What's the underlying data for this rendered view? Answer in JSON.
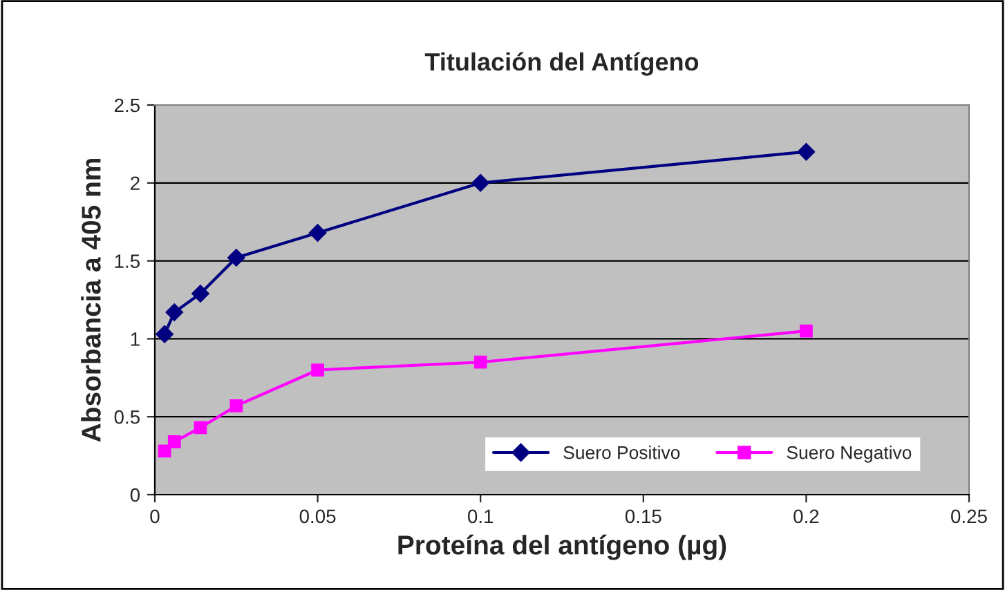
{
  "chart_data": {
    "type": "line",
    "title": "Titulación del Antígeno",
    "xlabel": "Proteína del antígeno (µg)",
    "ylabel": "Absorbancia a 405 nm",
    "x": [
      0.003,
      0.006,
      0.014,
      0.025,
      0.05,
      0.1,
      0.2
    ],
    "series": [
      {
        "name": "Suero Positivo",
        "color": "#000080",
        "marker": "diamond",
        "values": [
          1.03,
          1.17,
          1.29,
          1.52,
          1.68,
          2.0,
          2.2
        ]
      },
      {
        "name": "Suero Negativo",
        "color": "#ff00ff",
        "marker": "square",
        "values": [
          0.28,
          0.34,
          0.43,
          0.57,
          0.8,
          0.85,
          1.05
        ]
      }
    ],
    "xlim": [
      0,
      0.25
    ],
    "xticks": [
      0,
      0.05,
      0.1,
      0.15,
      0.2,
      0.25
    ],
    "ylim": [
      0,
      2.5
    ],
    "yticks": [
      0,
      0.5,
      1,
      1.5,
      2,
      2.5
    ],
    "grid": "y",
    "legend": "bottom right",
    "line_style": "solid"
  }
}
